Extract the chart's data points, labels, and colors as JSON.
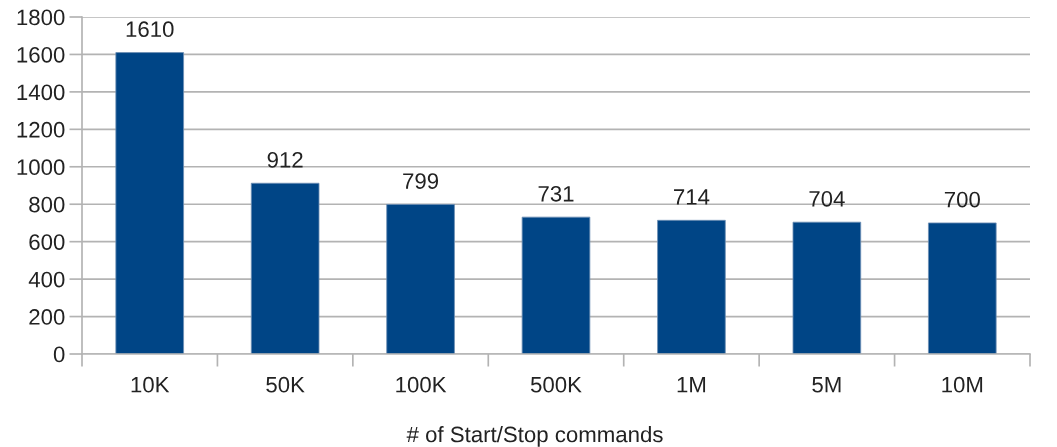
{
  "chart_data": {
    "type": "bar",
    "xlabel": "# of Start/Stop commands",
    "categories": [
      "10K",
      "50K",
      "100K",
      "500K",
      "1M",
      "5M",
      "10M"
    ],
    "values": [
      1610,
      912,
      799,
      731,
      714,
      704,
      700
    ],
    "color": "#004586",
    "ylim": [
      0,
      1800
    ],
    "yticks": [
      0,
      200,
      400,
      600,
      800,
      1000,
      1200,
      1400,
      1600,
      1800
    ],
    "grid": "y",
    "data_labels": true,
    "legend": false
  }
}
